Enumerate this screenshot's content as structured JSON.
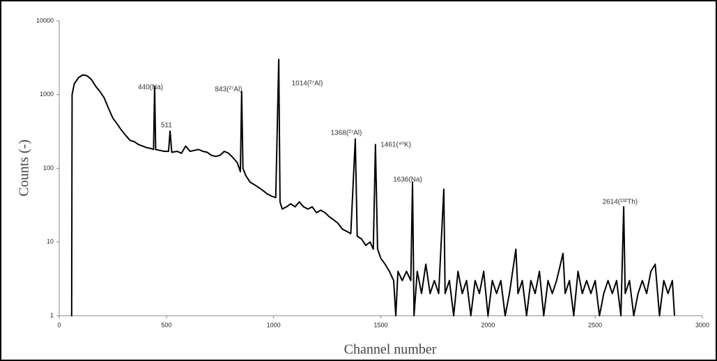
{
  "chart_data": {
    "type": "line",
    "xlabel": "Channel number",
    "ylabel": "Counts (-)",
    "log_y": true,
    "color": "#000000",
    "xlim": [
      0,
      3000
    ],
    "xticks": [
      0,
      500,
      1000,
      1500,
      2000,
      2500,
      3000
    ],
    "ylim": [
      1,
      10000
    ],
    "yticks": [
      1,
      10,
      100,
      1000,
      10000
    ],
    "x": [
      55,
      58,
      60,
      70,
      90,
      110,
      130,
      150,
      170,
      190,
      210,
      230,
      250,
      270,
      290,
      310,
      330,
      350,
      370,
      390,
      410,
      430,
      440,
      445,
      450,
      470,
      490,
      510,
      517,
      525,
      550,
      570,
      590,
      610,
      630,
      650,
      670,
      690,
      710,
      730,
      750,
      770,
      790,
      810,
      830,
      845,
      851,
      857,
      870,
      890,
      910,
      930,
      950,
      970,
      990,
      1010,
      1024,
      1030,
      1040,
      1060,
      1080,
      1100,
      1120,
      1140,
      1160,
      1180,
      1200,
      1220,
      1240,
      1260,
      1280,
      1300,
      1320,
      1340,
      1360,
      1381,
      1390,
      1410,
      1430,
      1450,
      1465,
      1475,
      1485,
      1500,
      1520,
      1540,
      1560,
      1570,
      1580,
      1600,
      1620,
      1640,
      1648,
      1655,
      1670,
      1690,
      1710,
      1730,
      1750,
      1770,
      1794,
      1800,
      1820,
      1840,
      1860,
      1880,
      1900,
      1920,
      1940,
      1960,
      1980,
      2000,
      2020,
      2040,
      2060,
      2080,
      2100,
      2130,
      2140,
      2160,
      2180,
      2200,
      2220,
      2240,
      2260,
      2280,
      2300,
      2320,
      2350,
      2360,
      2380,
      2400,
      2420,
      2440,
      2460,
      2480,
      2500,
      2520,
      2540,
      2560,
      2580,
      2600,
      2620,
      2633,
      2640,
      2660,
      2680,
      2700,
      2720,
      2740,
      2760,
      2780,
      2800,
      2820,
      2840,
      2860,
      2870
    ],
    "values": [
      1,
      1,
      1000,
      1400,
      1700,
      1850,
      1800,
      1600,
      1300,
      1100,
      900,
      650,
      480,
      400,
      330,
      280,
      240,
      230,
      210,
      200,
      190,
      185,
      180,
      1300,
      180,
      175,
      170,
      170,
      320,
      165,
      170,
      160,
      200,
      170,
      175,
      180,
      170,
      165,
      150,
      145,
      150,
      170,
      160,
      140,
      120,
      90,
      1100,
      100,
      80,
      65,
      60,
      55,
      50,
      45,
      42,
      40,
      3000,
      35,
      28,
      30,
      33,
      30,
      35,
      30,
      28,
      30,
      25,
      27,
      25,
      22,
      20,
      18,
      15,
      14,
      13,
      250,
      12,
      11,
      9,
      10,
      8,
      210,
      8,
      6,
      5,
      4,
      3,
      1,
      4,
      3,
      4,
      3,
      65,
      1,
      4,
      2,
      5,
      2,
      3,
      2,
      52,
      2,
      3,
      1,
      4,
      2,
      3,
      1,
      3,
      2,
      4,
      1,
      3,
      2,
      3,
      1,
      2,
      8,
      2,
      3,
      1,
      3,
      2,
      4,
      1,
      3,
      2,
      3,
      7,
      2,
      3,
      1,
      4,
      2,
      3,
      2,
      3,
      1,
      2,
      3,
      2,
      3,
      1,
      30,
      2,
      3,
      1,
      2,
      3,
      2,
      4,
      5,
      1,
      3,
      2,
      3,
      1
    ],
    "annotations": [
      {
        "text": "440(Na)",
        "x": 426,
        "y": 1260
      },
      {
        "text": "511",
        "x": 500,
        "y": 382
      },
      {
        "text": "843(²⁷Al)",
        "x": 790,
        "y": 1180
      },
      {
        "text": "1014(²⁷Al)",
        "x": 1157,
        "y": 1410
      },
      {
        "text": "1368(²⁷Al)",
        "x": 1339,
        "y": 300
      },
      {
        "text": "1461(⁴⁰K)",
        "x": 1570,
        "y": 208
      },
      {
        "text": "1636(Na)",
        "x": 1625,
        "y": 70
      },
      {
        "text": "2614(²³²Th)",
        "x": 2616,
        "y": 35
      }
    ]
  }
}
